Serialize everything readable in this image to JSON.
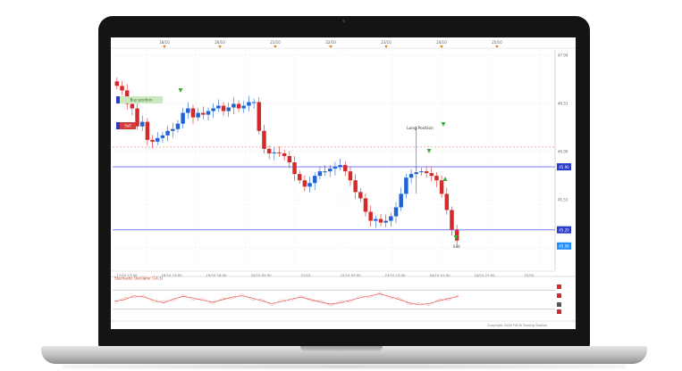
{
  "chart_data": {
    "type": "candlestick",
    "top_time_labels": [
      "18/10",
      "20/10",
      "21/10",
      "22/10",
      "23/10",
      "24/10",
      "25/10"
    ],
    "bottom_time_labels": [
      "17/10 13:00",
      "18/10 10:00",
      "19/10 18:00",
      "20/10 05:00",
      "21/10",
      "22/10 07:00",
      "23/10 15:00",
      "24/10 01:00",
      "24/10 21:00",
      "25/10"
    ],
    "price_ticks": [
      "47.04",
      "46.51",
      "46.00",
      "45.51",
      "45.04"
    ],
    "ylim": [
      44.8,
      47.2
    ],
    "support_levels": [
      {
        "value": 45.9,
        "label": "45.90",
        "color": "#8a8aff"
      },
      {
        "value": 45.2,
        "label": "45.20",
        "color": "#8a8aff"
      }
    ],
    "last_price": "45.08",
    "dashed_level": 46.12,
    "annotations": {
      "callout": "Long Position",
      "marker_low": "Exit"
    },
    "position_tags": {
      "long": "Buy position",
      "short": "Sell"
    },
    "indicator_title": "Stochastic Oscillator (14,3)",
    "indicator_levels": [
      80,
      20
    ],
    "indicator_values": [
      45,
      50,
      62,
      58,
      48,
      40,
      52,
      60,
      55,
      48,
      42,
      50,
      58,
      62,
      55,
      46,
      38,
      44,
      52,
      58,
      50,
      42,
      36,
      40,
      48,
      56,
      62,
      68,
      60,
      50,
      40,
      34,
      38,
      46,
      54,
      60
    ],
    "footer": "Copyright 2016 FXCM Trading Station",
    "prices": [
      46.8,
      46.75,
      46.6,
      46.55,
      46.35,
      46.4,
      46.2,
      46.18,
      46.22,
      46.25,
      46.3,
      46.32,
      46.38,
      46.5,
      46.55,
      46.45,
      46.5,
      46.48,
      46.52,
      46.55,
      46.58,
      46.52,
      46.56,
      46.6,
      46.55,
      46.58,
      46.62,
      46.62,
      46.3,
      46.1,
      46.05,
      46.06,
      46.05,
      46.02,
      45.95,
      45.82,
      45.75,
      45.68,
      45.72,
      45.8,
      45.85,
      45.85,
      45.88,
      45.9,
      45.92,
      45.85,
      45.75,
      45.62,
      45.55,
      45.4,
      45.3,
      45.32,
      45.28,
      45.3,
      45.35,
      45.45,
      45.6,
      45.78,
      45.82,
      45.84,
      45.85,
      45.83,
      45.8,
      45.75,
      45.6,
      45.42,
      45.2,
      45.08
    ]
  }
}
